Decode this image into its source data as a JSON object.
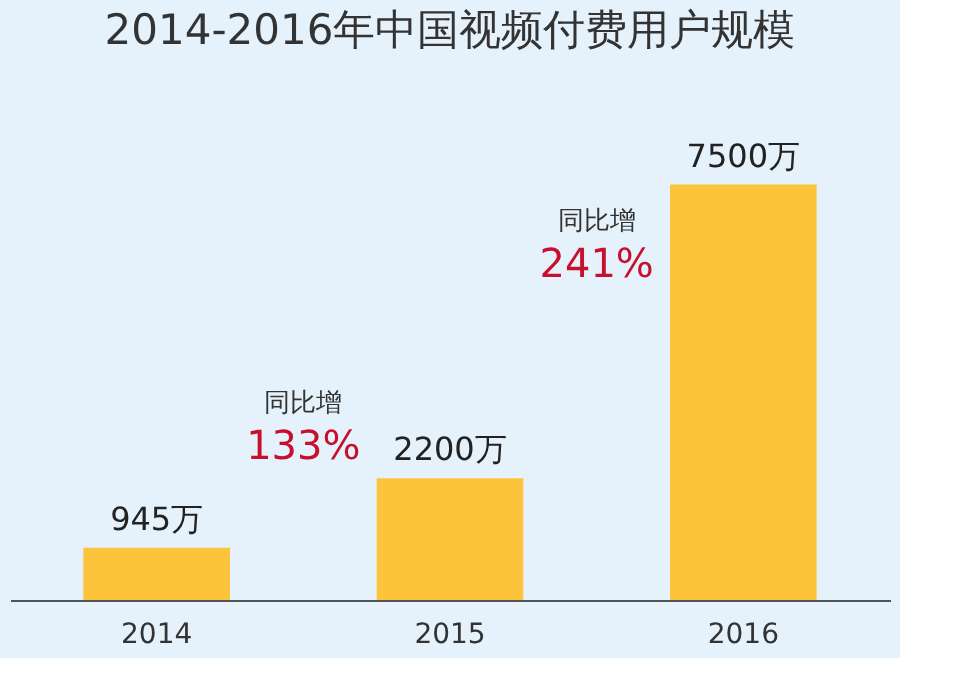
{
  "chart_data": {
    "type": "bar",
    "title": "2014-2016年中国视频付费用户规模",
    "categories": [
      "2014",
      "2015",
      "2016"
    ],
    "values": [
      945,
      2200,
      7500
    ],
    "value_labels": [
      "945万",
      "2200万",
      "7500万"
    ],
    "color": "#fcc43a",
    "annotations": [
      "同比增",
      "133%",
      "同比增",
      "241%"
    ]
  }
}
